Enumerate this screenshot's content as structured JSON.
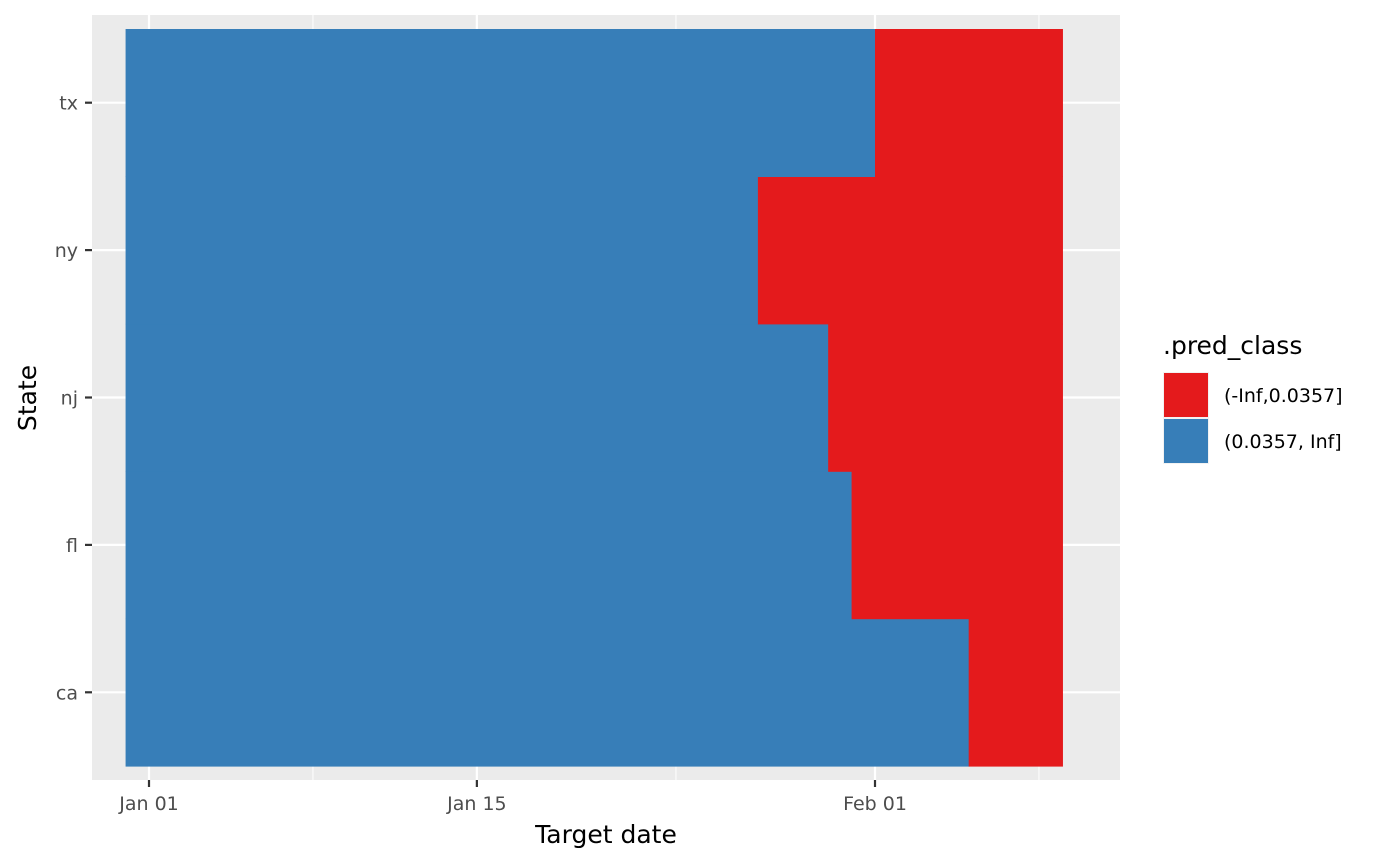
{
  "chart_data": {
    "type": "heatmap",
    "xlabel": "Target date",
    "ylabel": "State",
    "x_ticks": [
      "Jan 01",
      "Jan 15",
      "Feb 01"
    ],
    "x_tick_dates": [
      "2022-01-01",
      "2022-01-15",
      "2022-02-01"
    ],
    "xlim": [
      "2021-12-31",
      "2022-02-09"
    ],
    "categories": [
      "ca",
      "fl",
      "nj",
      "ny",
      "tx"
    ],
    "grid": true,
    "legend_position": "right",
    "legend": {
      "title": ".pred_class",
      "entries": [
        {
          "label": "(-Inf,0.0357]",
          "color": "#E41A1C"
        },
        {
          "label": "(0.0357, Inf]",
          "color": "#377EB8"
        }
      ]
    },
    "series": [
      {
        "state": "ca",
        "tiles": [
          {
            "start": "2021-12-31",
            "end": "2022-02-05",
            "class": "(0.0357, Inf]"
          },
          {
            "start": "2022-02-05",
            "end": "2022-02-09",
            "class": "(-Inf,0.0357]"
          }
        ]
      },
      {
        "state": "fl",
        "tiles": [
          {
            "start": "2021-12-31",
            "end": "2022-01-31",
            "class": "(0.0357, Inf]"
          },
          {
            "start": "2022-01-31",
            "end": "2022-02-09",
            "class": "(-Inf,0.0357]"
          }
        ]
      },
      {
        "state": "nj",
        "tiles": [
          {
            "start": "2021-12-31",
            "end": "2022-01-30",
            "class": "(0.0357, Inf]"
          },
          {
            "start": "2022-01-30",
            "end": "2022-02-09",
            "class": "(-Inf,0.0357]"
          }
        ]
      },
      {
        "state": "ny",
        "tiles": [
          {
            "start": "2021-12-31",
            "end": "2022-01-27",
            "class": "(0.0357, Inf]"
          },
          {
            "start": "2022-01-27",
            "end": "2022-02-09",
            "class": "(-Inf,0.0357]"
          }
        ]
      },
      {
        "state": "tx",
        "tiles": [
          {
            "start": "2021-12-31",
            "end": "2022-02-01",
            "class": "(0.0357, Inf]"
          },
          {
            "start": "2022-02-01",
            "end": "2022-02-09",
            "class": "(-Inf,0.0357]"
          }
        ]
      }
    ]
  }
}
